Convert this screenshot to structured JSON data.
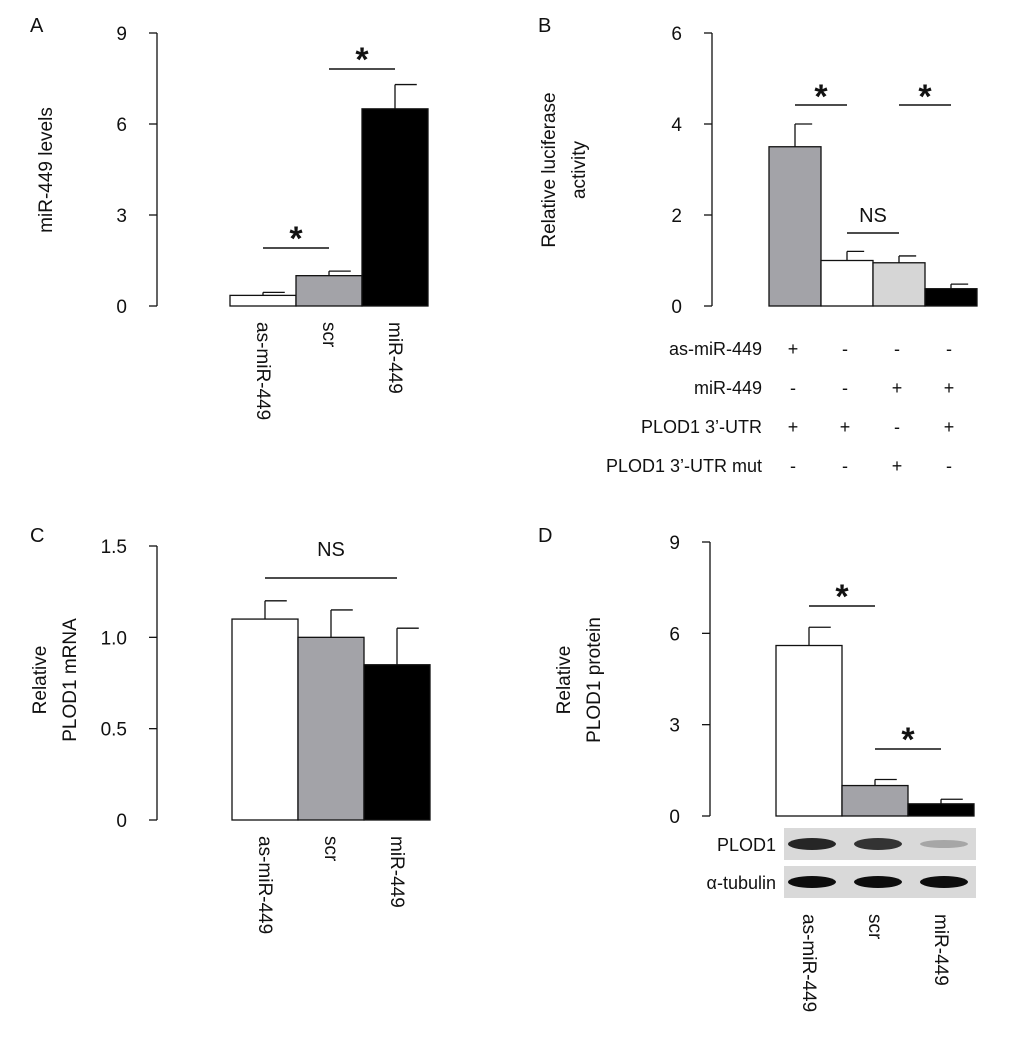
{
  "chart_data": [
    {
      "panel": "A",
      "type": "bar",
      "ylabel": "miR-449 levels",
      "ylim": [
        0,
        9
      ],
      "yticks": [
        "0",
        "3",
        "6",
        "9"
      ],
      "categories": [
        "as-miR-449",
        "scr",
        "miR-449"
      ],
      "values": [
        0.35,
        1.0,
        6.5
      ],
      "errors": [
        0.1,
        0.15,
        0.8
      ],
      "colors": [
        "#ffffff",
        "#a3a3a8",
        "#000000"
      ],
      "significance": [
        {
          "from": 0,
          "to": 1,
          "label": "*"
        },
        {
          "from": 1,
          "to": 2,
          "label": "*"
        }
      ]
    },
    {
      "panel": "B",
      "type": "bar",
      "ylabel": [
        "Relative luciferase",
        "activity"
      ],
      "ylim": [
        0,
        6
      ],
      "yticks": [
        "0",
        "2",
        "4",
        "6"
      ],
      "values": [
        3.5,
        1.0,
        0.95,
        0.38
      ],
      "errors": [
        0.5,
        0.2,
        0.15,
        0.1
      ],
      "colors": [
        "#a3a3a8",
        "#ffffff",
        "#d6d6d6",
        "#000000"
      ],
      "significance": [
        {
          "from": 0,
          "to": 1,
          "label": "*"
        },
        {
          "from": 1,
          "to": 2,
          "label": "NS"
        },
        {
          "from": 2,
          "to": 3,
          "label": "*"
        }
      ],
      "conditions": [
        {
          "label": "as-miR-449",
          "marks": [
            "+",
            "-",
            "-",
            "-"
          ]
        },
        {
          "label": "miR-449",
          "marks": [
            "-",
            "-",
            "+",
            "+"
          ]
        },
        {
          "label": "PLOD1 3’-UTR",
          "marks": [
            "+",
            "+",
            "-",
            "+"
          ]
        },
        {
          "label": "PLOD1 3’-UTR mut",
          "marks": [
            "-",
            "-",
            "+",
            "-"
          ]
        }
      ]
    },
    {
      "panel": "C",
      "type": "bar",
      "ylabel": [
        "Relative",
        "PLOD1 mRNA"
      ],
      "ylim": [
        0,
        1.5
      ],
      "yticks": [
        "0",
        "0.5",
        "1.0",
        "1.5"
      ],
      "categories": [
        "as-miR-449",
        "scr",
        "miR-449"
      ],
      "values": [
        1.1,
        1.0,
        0.85
      ],
      "errors": [
        0.1,
        0.15,
        0.2
      ],
      "colors": [
        "#ffffff",
        "#a3a3a8",
        "#000000"
      ],
      "significance": [
        {
          "from": 0,
          "to": 2,
          "label": "NS"
        }
      ]
    },
    {
      "panel": "D",
      "type": "bar",
      "ylabel": [
        "Relative",
        "PLOD1 protein"
      ],
      "ylim": [
        0,
        9
      ],
      "yticks": [
        "0",
        "3",
        "6",
        "9"
      ],
      "categories": [
        "as-miR-449",
        "scr",
        "miR-449"
      ],
      "values": [
        5.6,
        1.0,
        0.4
      ],
      "errors": [
        0.6,
        0.2,
        0.15
      ],
      "colors": [
        "#ffffff",
        "#a3a3a8",
        "#000000"
      ],
      "significance": [
        {
          "from": 0,
          "to": 1,
          "label": "*"
        },
        {
          "from": 1,
          "to": 2,
          "label": "*"
        }
      ],
      "blots": [
        {
          "label": "PLOD1",
          "intensities": [
            0.85,
            0.8,
            0.35
          ]
        },
        {
          "label": "α-tubulin",
          "intensities": [
            0.95,
            0.95,
            0.95
          ]
        }
      ]
    }
  ]
}
